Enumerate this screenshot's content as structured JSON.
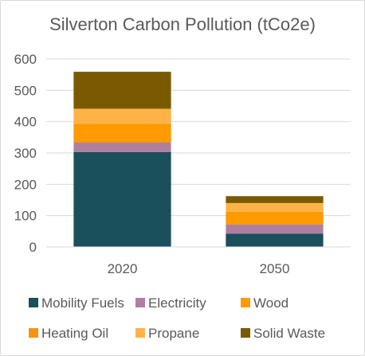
{
  "chart_data": {
    "type": "bar",
    "stacked": true,
    "title": "Silverton Carbon Pollution (tCo2e)",
    "xlabel": "",
    "ylabel": "",
    "categories": [
      "2020",
      "2050"
    ],
    "ylim": [
      0,
      600
    ],
    "yticks": [
      0,
      100,
      200,
      300,
      400,
      500,
      600
    ],
    "grid": true,
    "legend_position": "bottom",
    "series": [
      {
        "name": "Mobility Fuels",
        "color": "#1a4f5c",
        "values": [
          303,
          42
        ]
      },
      {
        "name": "Electricity",
        "color": "#b07fa0",
        "values": [
          30,
          30
        ]
      },
      {
        "name": "Wood",
        "color": "#ff9a00",
        "values": [
          60,
          40
        ]
      },
      {
        "name": "Heating Oil",
        "color": "#f7940f",
        "values": [
          0,
          0
        ]
      },
      {
        "name": "Propane",
        "color": "#ffb347",
        "values": [
          48,
          28
        ]
      },
      {
        "name": "Solid Waste",
        "color": "#7a5a00",
        "values": [
          118,
          22
        ]
      }
    ]
  }
}
